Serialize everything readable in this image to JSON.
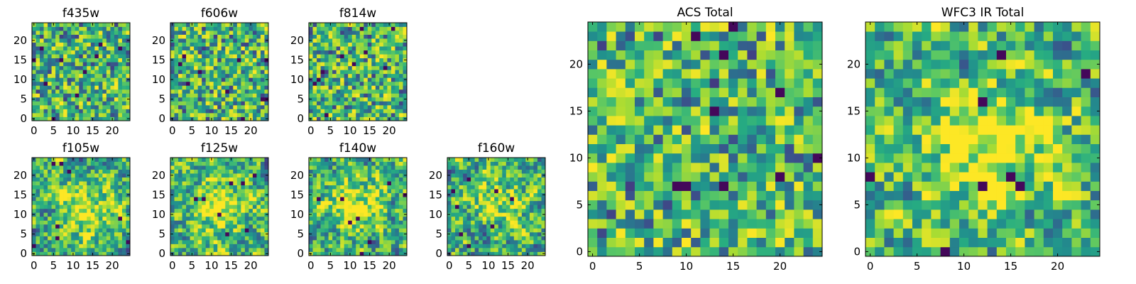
{
  "chart_data": [
    {
      "type": "heatmap",
      "title": "f435w",
      "xlabel": "",
      "ylabel": "",
      "grid_size": 25,
      "xlim": [
        0,
        24
      ],
      "ylim": [
        0,
        24
      ],
      "xticks": [
        0,
        5,
        10,
        15,
        20
      ],
      "yticks": [
        0,
        5,
        10,
        15,
        20
      ],
      "texture": "noise",
      "seed": 11,
      "colormap": "viridis",
      "smooth": 0,
      "blob": null
    },
    {
      "type": "heatmap",
      "title": "f606w",
      "xlabel": "",
      "ylabel": "",
      "grid_size": 25,
      "xlim": [
        0,
        24
      ],
      "ylim": [
        0,
        24
      ],
      "xticks": [
        0,
        5,
        10,
        15,
        20
      ],
      "yticks": [
        0,
        5,
        10,
        15,
        20
      ],
      "texture": "noise",
      "seed": 23,
      "colormap": "viridis",
      "smooth": 0,
      "blob": null
    },
    {
      "type": "heatmap",
      "title": "f814w",
      "xlabel": "",
      "ylabel": "",
      "grid_size": 25,
      "xlim": [
        0,
        24
      ],
      "ylim": [
        0,
        24
      ],
      "xticks": [
        0,
        5,
        10,
        15,
        20
      ],
      "yticks": [
        0,
        5,
        10,
        15,
        20
      ],
      "texture": "noise",
      "seed": 37,
      "colormap": "viridis",
      "smooth": 0,
      "blob": null
    },
    {
      "type": "heatmap",
      "title": "f105w",
      "xlabel": "",
      "ylabel": "",
      "grid_size": 25,
      "xlim": [
        0,
        24
      ],
      "ylim": [
        0,
        24
      ],
      "xticks": [
        0,
        5,
        10,
        15,
        20
      ],
      "yticks": [
        0,
        5,
        10,
        15,
        20
      ],
      "texture": "smooth",
      "seed": 41,
      "colormap": "viridis",
      "smooth": 1,
      "blob": {
        "x": 14,
        "y": 11,
        "sigma": 5,
        "amp": 0.35
      }
    },
    {
      "type": "heatmap",
      "title": "f125w",
      "xlabel": "",
      "ylabel": "",
      "grid_size": 25,
      "xlim": [
        0,
        24
      ],
      "ylim": [
        0,
        24
      ],
      "xticks": [
        0,
        5,
        10,
        15,
        20
      ],
      "yticks": [
        0,
        5,
        10,
        15,
        20
      ],
      "texture": "smooth",
      "seed": 53,
      "colormap": "viridis",
      "smooth": 1,
      "blob": {
        "x": 12,
        "y": 12,
        "sigma": 5,
        "amp": 0.3
      }
    },
    {
      "type": "heatmap",
      "title": "f140w",
      "xlabel": "",
      "ylabel": "",
      "grid_size": 25,
      "xlim": [
        0,
        24
      ],
      "ylim": [
        0,
        24
      ],
      "xticks": [
        0,
        5,
        10,
        15,
        20
      ],
      "yticks": [
        0,
        5,
        10,
        15,
        20
      ],
      "texture": "smooth",
      "seed": 67,
      "colormap": "viridis",
      "smooth": 1,
      "blob": {
        "x": 12,
        "y": 13,
        "sigma": 5,
        "amp": 0.3
      }
    },
    {
      "type": "heatmap",
      "title": "f160w",
      "xlabel": "",
      "ylabel": "",
      "grid_size": 25,
      "xlim": [
        0,
        24
      ],
      "ylim": [
        0,
        24
      ],
      "xticks": [
        0,
        5,
        10,
        15,
        20
      ],
      "yticks": [
        0,
        5,
        10,
        15,
        20
      ],
      "texture": "smooth",
      "seed": 79,
      "colormap": "viridis",
      "smooth": 1,
      "blob": {
        "x": 12,
        "y": 13,
        "sigma": 4,
        "amp": 0.3
      }
    },
    {
      "type": "heatmap",
      "title": "ACS Total",
      "xlabel": "",
      "ylabel": "",
      "grid_size": 25,
      "xlim": [
        0,
        24
      ],
      "ylim": [
        0,
        24
      ],
      "xticks": [
        0,
        5,
        10,
        15,
        20
      ],
      "yticks": [
        0,
        5,
        10,
        15,
        20
      ],
      "texture": "noise",
      "seed": 83,
      "colormap": "viridis",
      "smooth": 0,
      "blob": null
    },
    {
      "type": "heatmap",
      "title": "WFC3 IR Total",
      "xlabel": "",
      "ylabel": "",
      "grid_size": 25,
      "xlim": [
        0,
        24
      ],
      "ylim": [
        0,
        24
      ],
      "xticks": [
        0,
        5,
        10,
        15,
        20
      ],
      "yticks": [
        0,
        5,
        10,
        15,
        20
      ],
      "texture": "smooth",
      "seed": 97,
      "colormap": "viridis",
      "smooth": 1,
      "blob": {
        "x": 13,
        "y": 12,
        "sigma": 5,
        "amp": 0.4
      }
    }
  ]
}
